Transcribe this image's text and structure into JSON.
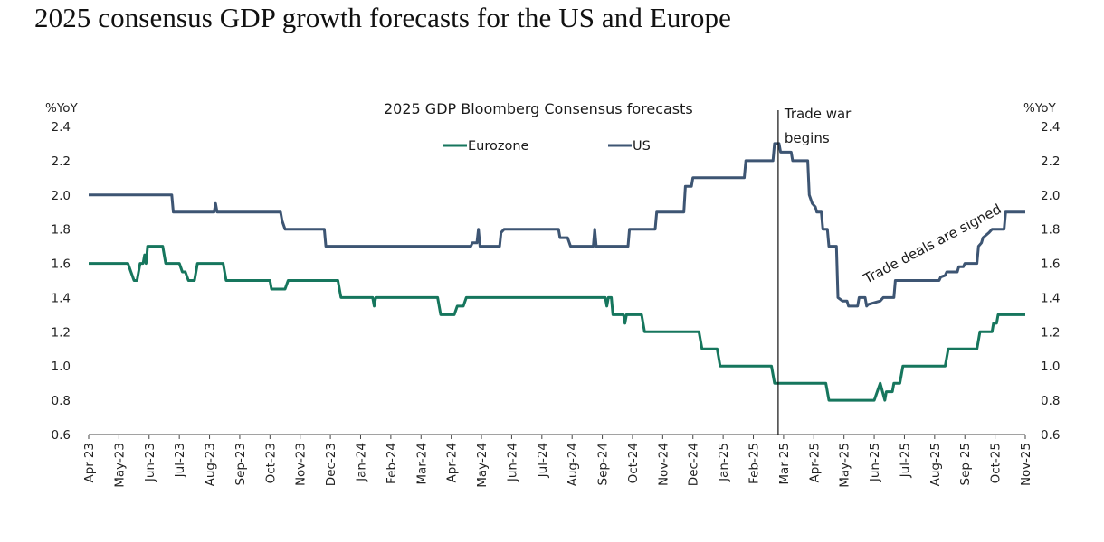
{
  "page": {
    "title": "2025 consensus GDP growth forecasts for the US and Europe"
  },
  "chart_data": {
    "type": "line",
    "title": "2025 GDP Bloomberg Consensus forecasts",
    "ylabel_left": "%YoY",
    "ylabel_right": "%YoY",
    "xlabel": "",
    "ylim": [
      0.6,
      2.4
    ],
    "yticks": [
      0.6,
      0.8,
      1.0,
      1.2,
      1.4,
      1.6,
      1.8,
      2.0,
      2.2,
      2.4
    ],
    "ytick_labels": [
      "0.6",
      "0.8",
      "1.0",
      "1.2",
      "1.4",
      "1.6",
      "1.8",
      "2.0",
      "2.2",
      "2.4"
    ],
    "grid": false,
    "legend_position": "top-center",
    "categories": [
      "Apr-23",
      "May-23",
      "Jun-23",
      "Jul-23",
      "Aug-23",
      "Sep-23",
      "Oct-23",
      "Nov-23",
      "Dec-23",
      "Jan-24",
      "Feb-24",
      "Mar-24",
      "Apr-24",
      "May-24",
      "Jun-24",
      "Jul-24",
      "Aug-24",
      "Sep-24",
      "Oct-24",
      "Nov-24",
      "Dec-24",
      "Jan-25",
      "Feb-25",
      "Mar-25",
      "Apr-25",
      "May-25",
      "Jun-25",
      "Jul-25",
      "Aug-25",
      "Sep-25",
      "Oct-25",
      "Nov-25"
    ],
    "x_unit": "month index from Apr-23 (0) to Nov-25 (31)",
    "series": [
      {
        "name": "Eurozone",
        "color": "#16765d",
        "points": [
          [
            0,
            1.6
          ],
          [
            1.3,
            1.6
          ],
          [
            1.4,
            1.55
          ],
          [
            1.5,
            1.5
          ],
          [
            1.6,
            1.5
          ],
          [
            1.7,
            1.6
          ],
          [
            1.8,
            1.6
          ],
          [
            1.85,
            1.65
          ],
          [
            1.9,
            1.6
          ],
          [
            1.95,
            1.7
          ],
          [
            2.45,
            1.7
          ],
          [
            2.55,
            1.6
          ],
          [
            3.0,
            1.6
          ],
          [
            3.1,
            1.55
          ],
          [
            3.2,
            1.55
          ],
          [
            3.3,
            1.5
          ],
          [
            3.5,
            1.5
          ],
          [
            3.6,
            1.6
          ],
          [
            4.45,
            1.6
          ],
          [
            4.55,
            1.5
          ],
          [
            6.0,
            1.5
          ],
          [
            6.05,
            1.45
          ],
          [
            6.5,
            1.45
          ],
          [
            6.6,
            1.5
          ],
          [
            8.25,
            1.5
          ],
          [
            8.35,
            1.4
          ],
          [
            9.4,
            1.4
          ],
          [
            9.45,
            1.35
          ],
          [
            9.5,
            1.4
          ],
          [
            11.55,
            1.4
          ],
          [
            11.65,
            1.3
          ],
          [
            12.1,
            1.3
          ],
          [
            12.2,
            1.35
          ],
          [
            12.4,
            1.35
          ],
          [
            12.5,
            1.4
          ],
          [
            17.1,
            1.4
          ],
          [
            17.15,
            1.35
          ],
          [
            17.2,
            1.4
          ],
          [
            17.3,
            1.4
          ],
          [
            17.35,
            1.3
          ],
          [
            17.7,
            1.3
          ],
          [
            17.75,
            1.25
          ],
          [
            17.8,
            1.3
          ],
          [
            18.3,
            1.3
          ],
          [
            18.4,
            1.2
          ],
          [
            20.2,
            1.2
          ],
          [
            20.3,
            1.1
          ],
          [
            20.8,
            1.1
          ],
          [
            20.9,
            1.0
          ],
          [
            22.6,
            1.0
          ],
          [
            22.7,
            0.9
          ],
          [
            24.4,
            0.9
          ],
          [
            24.5,
            0.8
          ],
          [
            26.0,
            0.8
          ],
          [
            26.1,
            0.85
          ],
          [
            26.2,
            0.9
          ],
          [
            26.35,
            0.8
          ],
          [
            26.4,
            0.85
          ],
          [
            26.6,
            0.85
          ],
          [
            26.65,
            0.9
          ],
          [
            26.85,
            0.9
          ],
          [
            26.95,
            1.0
          ],
          [
            28.35,
            1.0
          ],
          [
            28.45,
            1.1
          ],
          [
            29.4,
            1.1
          ],
          [
            29.5,
            1.2
          ],
          [
            29.9,
            1.2
          ],
          [
            29.95,
            1.25
          ],
          [
            30.05,
            1.25
          ],
          [
            30.1,
            1.3
          ],
          [
            31,
            1.3
          ]
        ]
      },
      {
        "name": "US",
        "color": "#3d5573",
        "points": [
          [
            0,
            2.0
          ],
          [
            2.75,
            2.0
          ],
          [
            2.8,
            1.9
          ],
          [
            4.15,
            1.9
          ],
          [
            4.2,
            1.95
          ],
          [
            4.25,
            1.9
          ],
          [
            6.35,
            1.9
          ],
          [
            6.4,
            1.85
          ],
          [
            6.5,
            1.8
          ],
          [
            7.8,
            1.8
          ],
          [
            7.85,
            1.7
          ],
          [
            12.65,
            1.7
          ],
          [
            12.7,
            1.72
          ],
          [
            12.85,
            1.72
          ],
          [
            12.9,
            1.8
          ],
          [
            12.95,
            1.7
          ],
          [
            13.6,
            1.7
          ],
          [
            13.65,
            1.78
          ],
          [
            13.75,
            1.8
          ],
          [
            15.55,
            1.8
          ],
          [
            15.6,
            1.75
          ],
          [
            15.85,
            1.75
          ],
          [
            15.95,
            1.7
          ],
          [
            16.7,
            1.7
          ],
          [
            16.75,
            1.8
          ],
          [
            16.8,
            1.7
          ],
          [
            17.85,
            1.7
          ],
          [
            17.9,
            1.8
          ],
          [
            18.75,
            1.8
          ],
          [
            18.8,
            1.9
          ],
          [
            19.7,
            1.9
          ],
          [
            19.75,
            2.05
          ],
          [
            19.95,
            2.05
          ],
          [
            20.0,
            2.1
          ],
          [
            21.7,
            2.1
          ],
          [
            21.75,
            2.2
          ],
          [
            22.65,
            2.2
          ],
          [
            22.7,
            2.3
          ],
          [
            22.85,
            2.3
          ],
          [
            22.9,
            2.25
          ],
          [
            23.25,
            2.25
          ],
          [
            23.3,
            2.2
          ],
          [
            23.8,
            2.2
          ],
          [
            23.85,
            2.0
          ],
          [
            23.95,
            1.95
          ],
          [
            24.05,
            1.93
          ],
          [
            24.1,
            1.9
          ],
          [
            24.25,
            1.9
          ],
          [
            24.3,
            1.8
          ],
          [
            24.45,
            1.8
          ],
          [
            24.5,
            1.7
          ],
          [
            24.75,
            1.7
          ],
          [
            24.8,
            1.4
          ],
          [
            24.95,
            1.38
          ],
          [
            25.1,
            1.38
          ],
          [
            25.15,
            1.35
          ],
          [
            25.45,
            1.35
          ],
          [
            25.5,
            1.4
          ],
          [
            25.7,
            1.4
          ],
          [
            25.75,
            1.35
          ],
          [
            25.8,
            1.36
          ],
          [
            26.0,
            1.37
          ],
          [
            26.2,
            1.38
          ],
          [
            26.3,
            1.4
          ],
          [
            26.65,
            1.4
          ],
          [
            26.7,
            1.5
          ],
          [
            28.15,
            1.5
          ],
          [
            28.2,
            1.52
          ],
          [
            28.35,
            1.53
          ],
          [
            28.4,
            1.55
          ],
          [
            28.75,
            1.55
          ],
          [
            28.8,
            1.58
          ],
          [
            28.95,
            1.58
          ],
          [
            29.0,
            1.6
          ],
          [
            29.4,
            1.6
          ],
          [
            29.45,
            1.7
          ],
          [
            29.55,
            1.72
          ],
          [
            29.6,
            1.75
          ],
          [
            29.8,
            1.78
          ],
          [
            29.9,
            1.8
          ],
          [
            30.3,
            1.8
          ],
          [
            30.35,
            1.9
          ],
          [
            31,
            1.9
          ]
        ]
      }
    ],
    "annotations": [
      {
        "text_lines": [
          "Trade war",
          "begins"
        ],
        "x_category": "Mar-25",
        "type": "vertical-line"
      },
      {
        "text": "Trade deals are signed",
        "type": "rotated-label"
      }
    ]
  }
}
